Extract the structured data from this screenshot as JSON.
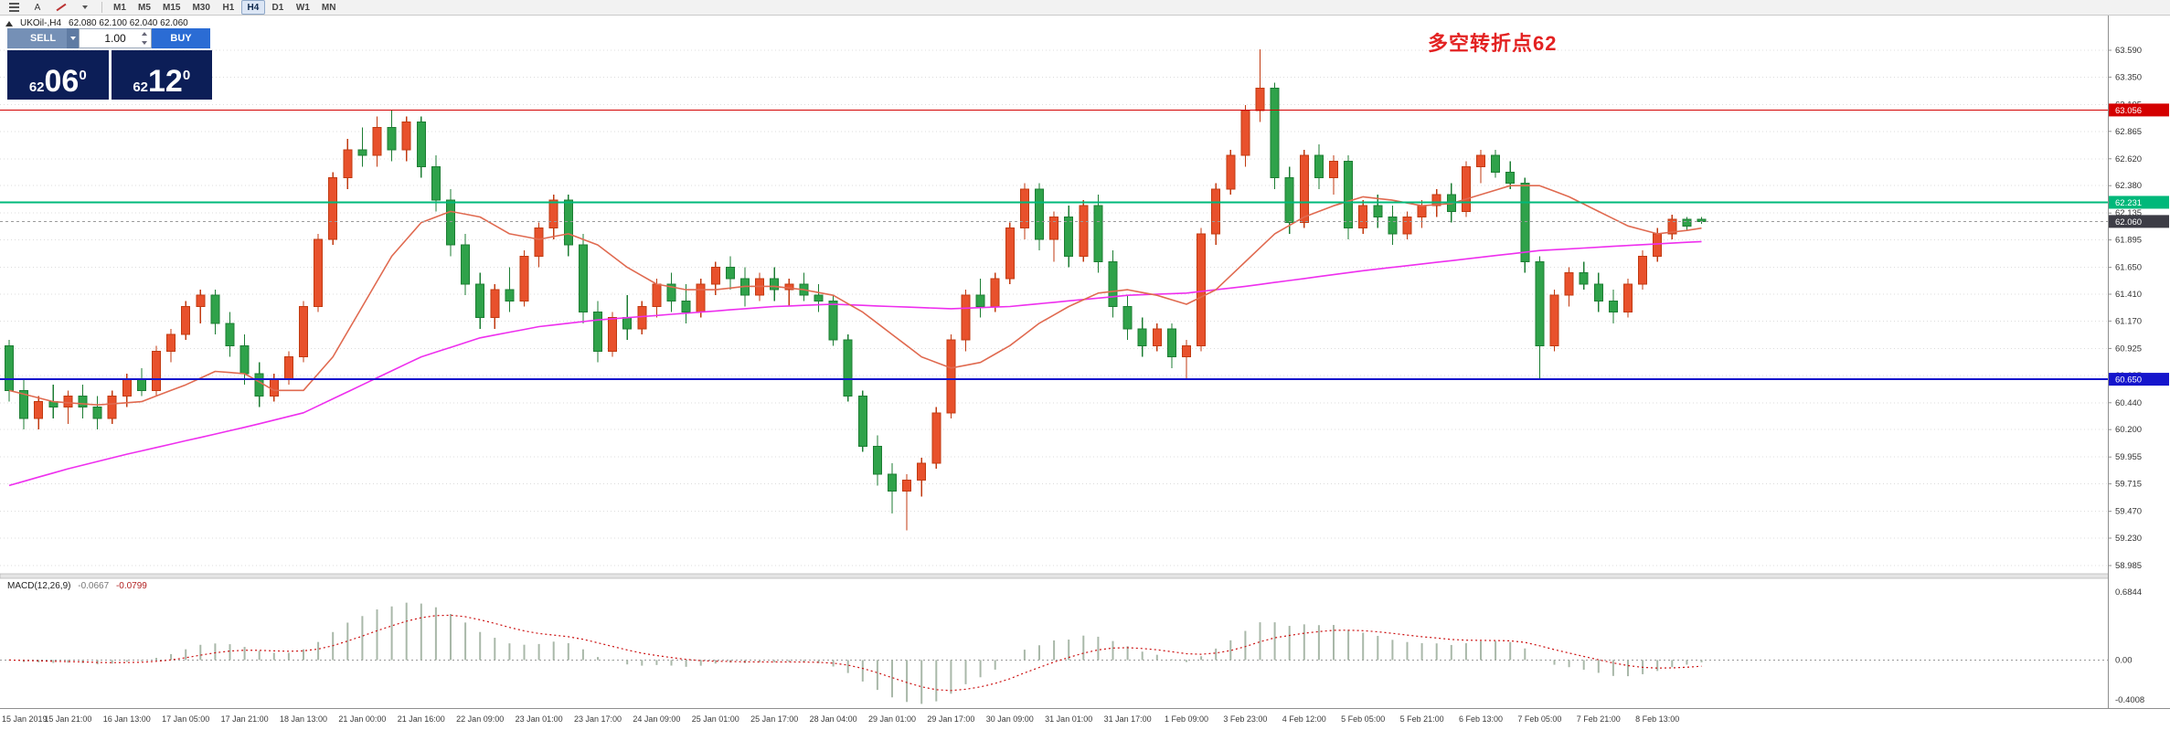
{
  "toolbar": {
    "cursor_tool_label": "A",
    "timeframes": [
      "M1",
      "M5",
      "M15",
      "M30",
      "H1",
      "H4",
      "D1",
      "W1",
      "MN"
    ],
    "active_timeframe": "H4"
  },
  "chart": {
    "symbol_title": "UKOil-,H4",
    "ohlc_text": "62.080 62.100 62.040 62.060",
    "annotation_text": "多空转折点62",
    "annotation_color": "#e32222"
  },
  "trade_panel": {
    "sell_label": "SELL",
    "buy_label": "BUY",
    "lot_value": "1.00",
    "sell_price": {
      "small": "62",
      "big": "06",
      "sup": "0"
    },
    "buy_price": {
      "small": "62",
      "big": "12",
      "sup": "0"
    },
    "colors": {
      "sell": "#7590b6",
      "sell_caret": "#5f7ba3",
      "buy": "#2b6cd4",
      "price_panel": "#0c1e57"
    }
  },
  "chart_data": {
    "type": "candlestick",
    "symbol": "UKOil",
    "timeframe": "H4",
    "price_ticks": [
      "63.590",
      "63.350",
      "63.105",
      "62.865",
      "62.620",
      "62.380",
      "62.135",
      "61.895",
      "61.650",
      "61.410",
      "61.170",
      "60.925",
      "60.685",
      "60.440",
      "60.200",
      "59.955",
      "59.715",
      "59.470",
      "59.230",
      "58.985"
    ],
    "time_labels": [
      "15 Jan 2019",
      "15 Jan 21:00",
      "16 Jan 13:00",
      "17 Jan 05:00",
      "17 Jan 21:00",
      "18 Jan 13:00",
      "21 Jan 00:00",
      "21 Jan 16:00",
      "22 Jan 09:00",
      "23 Jan 01:00",
      "23 Jan 17:00",
      "24 Jan 09:00",
      "25 Jan 01:00",
      "25 Jan 17:00",
      "28 Jan 04:00",
      "29 Jan 01:00",
      "29 Jan 17:00",
      "30 Jan 09:00",
      "31 Jan 01:00",
      "31 Jan 17:00",
      "1 Feb 09:00",
      "3 Feb 23:00",
      "4 Feb 12:00",
      "5 Feb 05:00",
      "5 Feb 21:00",
      "6 Feb 13:00",
      "7 Feb 05:00",
      "7 Feb 21:00",
      "8 Feb 13:00"
    ],
    "label_every_n_bars": 4,
    "candles": [
      [
        60.95,
        61.0,
        60.45,
        60.55
      ],
      [
        60.55,
        60.65,
        60.2,
        60.3
      ],
      [
        60.3,
        60.5,
        60.2,
        60.45
      ],
      [
        60.45,
        60.6,
        60.3,
        60.4
      ],
      [
        60.4,
        60.55,
        60.25,
        60.5
      ],
      [
        60.5,
        60.6,
        60.3,
        60.4
      ],
      [
        60.4,
        60.5,
        60.2,
        60.3
      ],
      [
        60.3,
        60.55,
        60.25,
        60.5
      ],
      [
        60.5,
        60.7,
        60.4,
        60.65
      ],
      [
        60.65,
        60.75,
        60.5,
        60.55
      ],
      [
        60.55,
        60.95,
        60.5,
        60.9
      ],
      [
        60.9,
        61.1,
        60.8,
        61.05
      ],
      [
        61.05,
        61.35,
        61.0,
        61.3
      ],
      [
        61.3,
        61.45,
        61.15,
        61.4
      ],
      [
        61.4,
        61.45,
        61.05,
        61.15
      ],
      [
        61.15,
        61.25,
        60.85,
        60.95
      ],
      [
        60.95,
        61.05,
        60.6,
        60.7
      ],
      [
        60.7,
        60.8,
        60.4,
        60.5
      ],
      [
        60.5,
        60.7,
        60.45,
        60.65
      ],
      [
        60.65,
        60.9,
        60.6,
        60.85
      ],
      [
        60.85,
        61.35,
        60.8,
        61.3
      ],
      [
        61.3,
        61.95,
        61.25,
        61.9
      ],
      [
        61.9,
        62.5,
        61.85,
        62.45
      ],
      [
        62.45,
        62.8,
        62.35,
        62.7
      ],
      [
        62.7,
        62.9,
        62.55,
        62.65
      ],
      [
        62.65,
        63.0,
        62.55,
        62.9
      ],
      [
        62.9,
        63.05,
        62.6,
        62.7
      ],
      [
        62.7,
        63.0,
        62.6,
        62.95
      ],
      [
        62.95,
        63.0,
        62.45,
        62.55
      ],
      [
        62.55,
        62.65,
        62.15,
        62.25
      ],
      [
        62.25,
        62.35,
        61.75,
        61.85
      ],
      [
        61.85,
        61.95,
        61.4,
        61.5
      ],
      [
        61.5,
        61.6,
        61.1,
        61.2
      ],
      [
        61.2,
        61.5,
        61.1,
        61.45
      ],
      [
        61.45,
        61.65,
        61.25,
        61.35
      ],
      [
        61.35,
        61.8,
        61.3,
        61.75
      ],
      [
        61.75,
        62.05,
        61.65,
        62.0
      ],
      [
        62.0,
        62.3,
        61.9,
        62.25
      ],
      [
        62.25,
        62.3,
        61.75,
        61.85
      ],
      [
        61.85,
        61.95,
        61.15,
        61.25
      ],
      [
        61.25,
        61.35,
        60.8,
        60.9
      ],
      [
        60.9,
        61.25,
        60.85,
        61.2
      ],
      [
        61.2,
        61.4,
        61.0,
        61.1
      ],
      [
        61.1,
        61.35,
        61.05,
        61.3
      ],
      [
        61.3,
        61.55,
        61.2,
        61.5
      ],
      [
        61.5,
        61.6,
        61.25,
        61.35
      ],
      [
        61.35,
        61.5,
        61.15,
        61.25
      ],
      [
        61.25,
        61.55,
        61.2,
        61.5
      ],
      [
        61.5,
        61.7,
        61.4,
        61.65
      ],
      [
        61.65,
        61.75,
        61.45,
        61.55
      ],
      [
        61.55,
        61.65,
        61.3,
        61.4
      ],
      [
        61.4,
        61.6,
        61.35,
        61.55
      ],
      [
        61.55,
        61.65,
        61.35,
        61.45
      ],
      [
        61.45,
        61.55,
        61.3,
        61.5
      ],
      [
        61.5,
        61.6,
        61.35,
        61.4
      ],
      [
        61.4,
        61.5,
        61.25,
        61.35
      ],
      [
        61.35,
        61.4,
        60.95,
        61.0
      ],
      [
        61.0,
        61.05,
        60.45,
        60.5
      ],
      [
        60.5,
        60.55,
        60.0,
        60.05
      ],
      [
        60.05,
        60.15,
        59.7,
        59.8
      ],
      [
        59.8,
        59.9,
        59.45,
        59.65
      ],
      [
        59.65,
        59.8,
        59.3,
        59.75
      ],
      [
        59.75,
        59.95,
        59.6,
        59.9
      ],
      [
        59.9,
        60.4,
        59.85,
        60.35
      ],
      [
        60.35,
        61.05,
        60.3,
        61.0
      ],
      [
        61.0,
        61.45,
        60.9,
        61.4
      ],
      [
        61.4,
        61.55,
        61.2,
        61.3
      ],
      [
        61.3,
        61.6,
        61.25,
        61.55
      ],
      [
        61.55,
        62.05,
        61.5,
        62.0
      ],
      [
        62.0,
        62.4,
        61.9,
        62.35
      ],
      [
        62.35,
        62.4,
        61.8,
        61.9
      ],
      [
        61.9,
        62.15,
        61.7,
        62.1
      ],
      [
        62.1,
        62.2,
        61.65,
        61.75
      ],
      [
        61.75,
        62.25,
        61.7,
        62.2
      ],
      [
        62.2,
        62.3,
        61.6,
        61.7
      ],
      [
        61.7,
        61.8,
        61.2,
        61.3
      ],
      [
        61.3,
        61.4,
        61.0,
        61.1
      ],
      [
        61.1,
        61.2,
        60.85,
        60.95
      ],
      [
        60.95,
        61.15,
        60.9,
        61.1
      ],
      [
        61.1,
        61.15,
        60.75,
        60.85
      ],
      [
        60.85,
        61.0,
        60.65,
        60.95
      ],
      [
        60.95,
        62.0,
        60.9,
        61.95
      ],
      [
        61.95,
        62.4,
        61.85,
        62.35
      ],
      [
        62.35,
        62.7,
        62.3,
        62.65
      ],
      [
        62.65,
        63.1,
        62.55,
        63.05
      ],
      [
        63.05,
        63.6,
        62.95,
        63.25
      ],
      [
        63.25,
        63.3,
        62.35,
        62.45
      ],
      [
        62.45,
        62.55,
        61.95,
        62.05
      ],
      [
        62.05,
        62.7,
        62.0,
        62.65
      ],
      [
        62.65,
        62.75,
        62.35,
        62.45
      ],
      [
        62.45,
        62.65,
        62.3,
        62.6
      ],
      [
        62.6,
        62.65,
        61.9,
        62.0
      ],
      [
        62.0,
        62.25,
        61.95,
        62.2
      ],
      [
        62.2,
        62.3,
        62.0,
        62.1
      ],
      [
        62.1,
        62.2,
        61.85,
        61.95
      ],
      [
        61.95,
        62.15,
        61.9,
        62.1
      ],
      [
        62.1,
        62.25,
        62.0,
        62.2
      ],
      [
        62.2,
        62.35,
        62.1,
        62.3
      ],
      [
        62.3,
        62.4,
        62.05,
        62.15
      ],
      [
        62.15,
        62.6,
        62.1,
        62.55
      ],
      [
        62.55,
        62.7,
        62.4,
        62.65
      ],
      [
        62.65,
        62.7,
        62.45,
        62.5
      ],
      [
        62.5,
        62.6,
        62.35,
        62.4
      ],
      [
        62.4,
        62.45,
        61.6,
        61.7
      ],
      [
        61.7,
        61.75,
        60.65,
        60.95
      ],
      [
        60.95,
        61.45,
        60.9,
        61.4
      ],
      [
        61.4,
        61.65,
        61.3,
        61.6
      ],
      [
        61.6,
        61.7,
        61.45,
        61.5
      ],
      [
        61.5,
        61.6,
        61.25,
        61.35
      ],
      [
        61.35,
        61.45,
        61.15,
        61.25
      ],
      [
        61.25,
        61.55,
        61.2,
        61.5
      ],
      [
        61.5,
        61.8,
        61.45,
        61.75
      ],
      [
        61.75,
        62.0,
        61.7,
        61.95
      ],
      [
        61.95,
        62.12,
        61.9,
        62.08
      ],
      [
        62.08,
        62.1,
        61.98,
        62.02
      ],
      [
        62.08,
        62.1,
        62.04,
        62.06
      ]
    ],
    "ma_fast_points": [
      [
        0,
        60.55
      ],
      [
        3,
        60.45
      ],
      [
        6,
        60.42
      ],
      [
        9,
        60.45
      ],
      [
        12,
        60.6
      ],
      [
        14,
        60.72
      ],
      [
        16,
        60.7
      ],
      [
        18,
        60.55
      ],
      [
        20,
        60.55
      ],
      [
        22,
        60.85
      ],
      [
        24,
        61.3
      ],
      [
        26,
        61.75
      ],
      [
        28,
        62.05
      ],
      [
        30,
        62.15
      ],
      [
        32,
        62.1
      ],
      [
        34,
        61.95
      ],
      [
        36,
        61.9
      ],
      [
        38,
        61.95
      ],
      [
        40,
        61.85
      ],
      [
        42,
        61.65
      ],
      [
        44,
        61.5
      ],
      [
        46,
        61.45
      ],
      [
        48,
        61.45
      ],
      [
        50,
        61.48
      ],
      [
        52,
        61.48
      ],
      [
        54,
        61.45
      ],
      [
        56,
        61.4
      ],
      [
        58,
        61.25
      ],
      [
        60,
        61.05
      ],
      [
        62,
        60.85
      ],
      [
        64,
        60.75
      ],
      [
        66,
        60.8
      ],
      [
        68,
        60.95
      ],
      [
        70,
        61.15
      ],
      [
        72,
        61.3
      ],
      [
        74,
        61.42
      ],
      [
        76,
        61.45
      ],
      [
        78,
        61.4
      ],
      [
        80,
        61.32
      ],
      [
        82,
        61.45
      ],
      [
        84,
        61.7
      ],
      [
        86,
        61.95
      ],
      [
        88,
        62.1
      ],
      [
        90,
        62.2
      ],
      [
        92,
        62.28
      ],
      [
        94,
        62.25
      ],
      [
        96,
        62.2
      ],
      [
        98,
        62.22
      ],
      [
        100,
        62.3
      ],
      [
        102,
        62.38
      ],
      [
        104,
        62.38
      ],
      [
        106,
        62.28
      ],
      [
        108,
        62.15
      ],
      [
        110,
        62.02
      ],
      [
        112,
        61.95
      ],
      [
        114,
        61.98
      ],
      [
        115,
        62.0
      ]
    ],
    "ma_slow_points": [
      [
        0,
        59.7
      ],
      [
        4,
        59.85
      ],
      [
        8,
        59.98
      ],
      [
        12,
        60.1
      ],
      [
        16,
        60.22
      ],
      [
        20,
        60.35
      ],
      [
        24,
        60.6
      ],
      [
        28,
        60.85
      ],
      [
        32,
        61.02
      ],
      [
        36,
        61.12
      ],
      [
        40,
        61.18
      ],
      [
        44,
        61.22
      ],
      [
        48,
        61.26
      ],
      [
        52,
        61.3
      ],
      [
        56,
        61.32
      ],
      [
        60,
        61.3
      ],
      [
        64,
        61.28
      ],
      [
        68,
        61.3
      ],
      [
        72,
        61.35
      ],
      [
        76,
        61.4
      ],
      [
        80,
        61.42
      ],
      [
        84,
        61.48
      ],
      [
        88,
        61.55
      ],
      [
        92,
        61.62
      ],
      [
        96,
        61.68
      ],
      [
        100,
        61.74
      ],
      [
        104,
        61.8
      ],
      [
        108,
        61.83
      ],
      [
        112,
        61.86
      ],
      [
        115,
        61.88
      ]
    ],
    "hlines": [
      {
        "price": 63.056,
        "label": "63.056",
        "color": "#d40000",
        "width": 1.3
      },
      {
        "price": 62.231,
        "label": "62.231",
        "color": "#00b87a",
        "width": 2
      },
      {
        "price": 60.65,
        "label": "60.650",
        "color": "#1515cc",
        "width": 2
      }
    ],
    "current_price": {
      "value": 62.06,
      "label": "62.060",
      "badge_color": "#3d3d46"
    },
    "colors": {
      "up": "#e8512c",
      "up_stroke": "#c13a10",
      "down": "#2fa24a",
      "down_stroke": "#1c7d33",
      "ma_fast": "#e06a50",
      "ma_slow": "#ee2fee",
      "grid": "#dcdcdc",
      "axis_text": "#333333",
      "macd_bar": "#a9b8a9",
      "macd_signal": "#cc1111"
    },
    "macd": {
      "label": "MACD(12,26,9)",
      "value1": "-0.0667",
      "value2": "-0.0799",
      "fast": 12,
      "slow": 26,
      "signal": 9,
      "scale": {
        "top": "0.6844",
        "zero": "0.00",
        "bottom": "-0.4008"
      }
    }
  }
}
